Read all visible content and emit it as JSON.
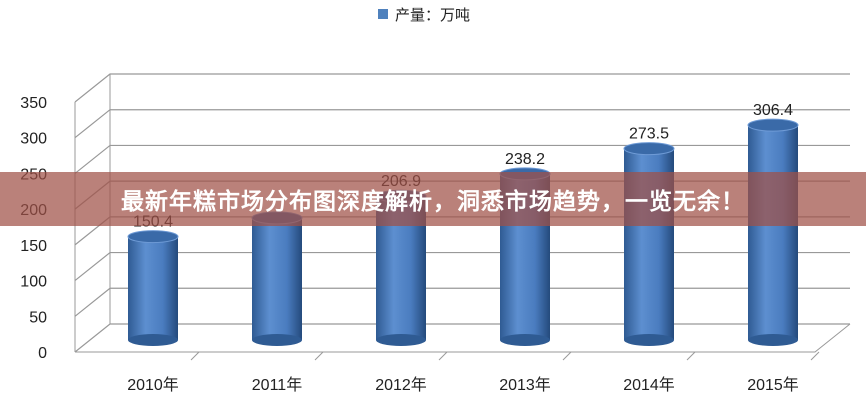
{
  "banner": {
    "title": "最新年糕市场分布图深度解析，洞悉市场趋势，一览无余！"
  },
  "chart_data": {
    "type": "bar",
    "style": "3d-cylinder",
    "categories": [
      "2010年",
      "2011年",
      "2012年",
      "2013年",
      "2014年",
      "2015年"
    ],
    "series": [
      {
        "name": "产量：万吨",
        "values": [
          150.4,
          176.5,
          206.9,
          238.2,
          273.5,
          306.4
        ],
        "color": "#4f81bd"
      }
    ],
    "data_labels": [
      "150.4",
      "",
      "206.9",
      "238.2",
      "273.5",
      "306.4"
    ],
    "yticks": [
      0,
      50,
      100,
      150,
      200,
      250,
      300,
      350
    ],
    "ylim": [
      0,
      350
    ],
    "grid": true,
    "legend": "top"
  }
}
